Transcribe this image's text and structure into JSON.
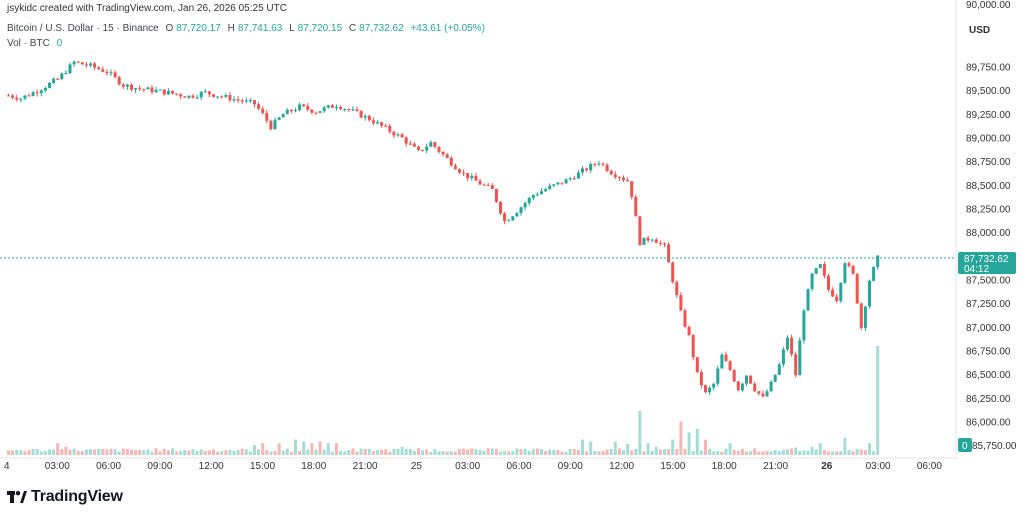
{
  "header": {
    "created": "jsykidc created with TradingView.com, Jan 26, 2026 05:25 UTC",
    "symbol": "Bitcoin / U.S. Dollar · 15 · Binance",
    "o_label": "O",
    "o": "87,720.17",
    "h_label": "H",
    "h": "87,741.63",
    "l_label": "L",
    "l": "87,720.15",
    "c_label": "C",
    "c": "87,732.62",
    "change": "+43.61 (+0.05%)",
    "vol_label": "Vol · BTC",
    "vol": "0"
  },
  "axis": {
    "currency": "USD",
    "price_label": "87,732.62",
    "countdown": "04:12",
    "vol_badge": "0",
    "top_partial": "90,000.00",
    "bottom_partial": "85,750.00"
  },
  "brand": {
    "name": "TradingView"
  },
  "colors": {
    "up": "#26a69a",
    "down": "#ef5350",
    "up_vol": "#a6dcd6",
    "down_vol": "#f5b7b4",
    "price_line": "#26a69a"
  },
  "chart_data": {
    "type": "candlestick",
    "title": "Bitcoin / U.S. Dollar · 15 · Binance",
    "ylabel": "USD",
    "ylim": [
      85750,
      90000
    ],
    "y_ticks": [
      "89,750.00",
      "89,500.00",
      "89,250.00",
      "89,000.00",
      "88,750.00",
      "88,500.00",
      "88,250.00",
      "88,000.00",
      "87,750.00",
      "87,500.00",
      "87,250.00",
      "87,000.00",
      "86,750.00",
      "86,500.00",
      "86,250.00",
      "86,000.00"
    ],
    "x_ticks": [
      "4",
      "03:00",
      "06:00",
      "09:00",
      "12:00",
      "15:00",
      "18:00",
      "21:00",
      "25",
      "03:00",
      "06:00",
      "09:00",
      "12:00",
      "15:00",
      "18:00",
      "21:00",
      "26",
      "03:00",
      "06:00"
    ],
    "last_price": 87732.62,
    "close_path": [
      [
        0,
        89450
      ],
      [
        3,
        89420
      ],
      [
        7,
        89500
      ],
      [
        12,
        89620
      ],
      [
        16,
        89800
      ],
      [
        20,
        89760
      ],
      [
        24,
        89700
      ],
      [
        28,
        89560
      ],
      [
        32,
        89520
      ],
      [
        36,
        89500
      ],
      [
        40,
        89470
      ],
      [
        44,
        89440
      ],
      [
        48,
        89480
      ],
      [
        52,
        89440
      ],
      [
        56,
        89400
      ],
      [
        60,
        89360
      ],
      [
        62,
        89250
      ],
      [
        64,
        89120
      ],
      [
        67,
        89250
      ],
      [
        71,
        89330
      ],
      [
        75,
        89280
      ],
      [
        80,
        89350
      ],
      [
        84,
        89280
      ],
      [
        88,
        89200
      ],
      [
        92,
        89100
      ],
      [
        96,
        89000
      ],
      [
        100,
        88850
      ],
      [
        103,
        88950
      ],
      [
        107,
        88780
      ],
      [
        111,
        88620
      ],
      [
        115,
        88520
      ],
      [
        118,
        88450
      ],
      [
        121,
        88120
      ],
      [
        124,
        88230
      ],
      [
        128,
        88400
      ],
      [
        132,
        88480
      ],
      [
        136,
        88550
      ],
      [
        140,
        88650
      ],
      [
        144,
        88750
      ],
      [
        147,
        88640
      ],
      [
        151,
        88550
      ],
      [
        152,
        88400
      ],
      [
        154,
        87900
      ],
      [
        157,
        87950
      ],
      [
        160,
        87850
      ],
      [
        162,
        87500
      ],
      [
        164,
        87150
      ],
      [
        166,
        86900
      ],
      [
        168,
        86500
      ],
      [
        170,
        86300
      ],
      [
        172,
        86400
      ],
      [
        174,
        86700
      ],
      [
        176,
        86550
      ],
      [
        178,
        86350
      ],
      [
        180,
        86500
      ],
      [
        182,
        86350
      ],
      [
        184,
        86250
      ],
      [
        186,
        86400
      ],
      [
        188,
        86600
      ],
      [
        190,
        86900
      ],
      [
        192,
        86500
      ],
      [
        194,
        87200
      ],
      [
        196,
        87550
      ],
      [
        198,
        87650
      ],
      [
        200,
        87400
      ],
      [
        202,
        87300
      ],
      [
        204,
        87700
      ],
      [
        206,
        87550
      ],
      [
        208,
        87000
      ],
      [
        210,
        87500
      ],
      [
        212,
        87730
      ]
    ],
    "volume": {
      "low_cluster": [
        [
          0,
          10
        ],
        [
          12,
          30
        ],
        [
          14,
          20
        ],
        [
          60,
          25
        ],
        [
          62,
          30
        ],
        [
          66,
          30
        ],
        [
          70,
          40
        ],
        [
          72,
          35
        ],
        [
          74,
          30
        ],
        [
          76,
          35
        ],
        [
          78,
          30
        ],
        [
          80,
          30
        ],
        [
          96,
          20
        ],
        [
          124,
          15
        ],
        [
          140,
          40
        ],
        [
          142,
          35
        ],
        [
          148,
          35
        ],
        [
          151,
          28
        ],
        [
          154,
          120
        ],
        [
          156,
          30
        ],
        [
          158,
          20
        ],
        [
          162,
          40
        ],
        [
          164,
          90
        ],
        [
          166,
          60
        ],
        [
          168,
          70
        ],
        [
          170,
          40
        ],
        [
          176,
          30
        ],
        [
          192,
          18
        ],
        [
          196,
          20
        ],
        [
          198,
          30
        ],
        [
          204,
          45
        ],
        [
          210,
          30
        ],
        [
          212,
          300
        ]
      ],
      "baseline_fraction": 0.05
    }
  }
}
